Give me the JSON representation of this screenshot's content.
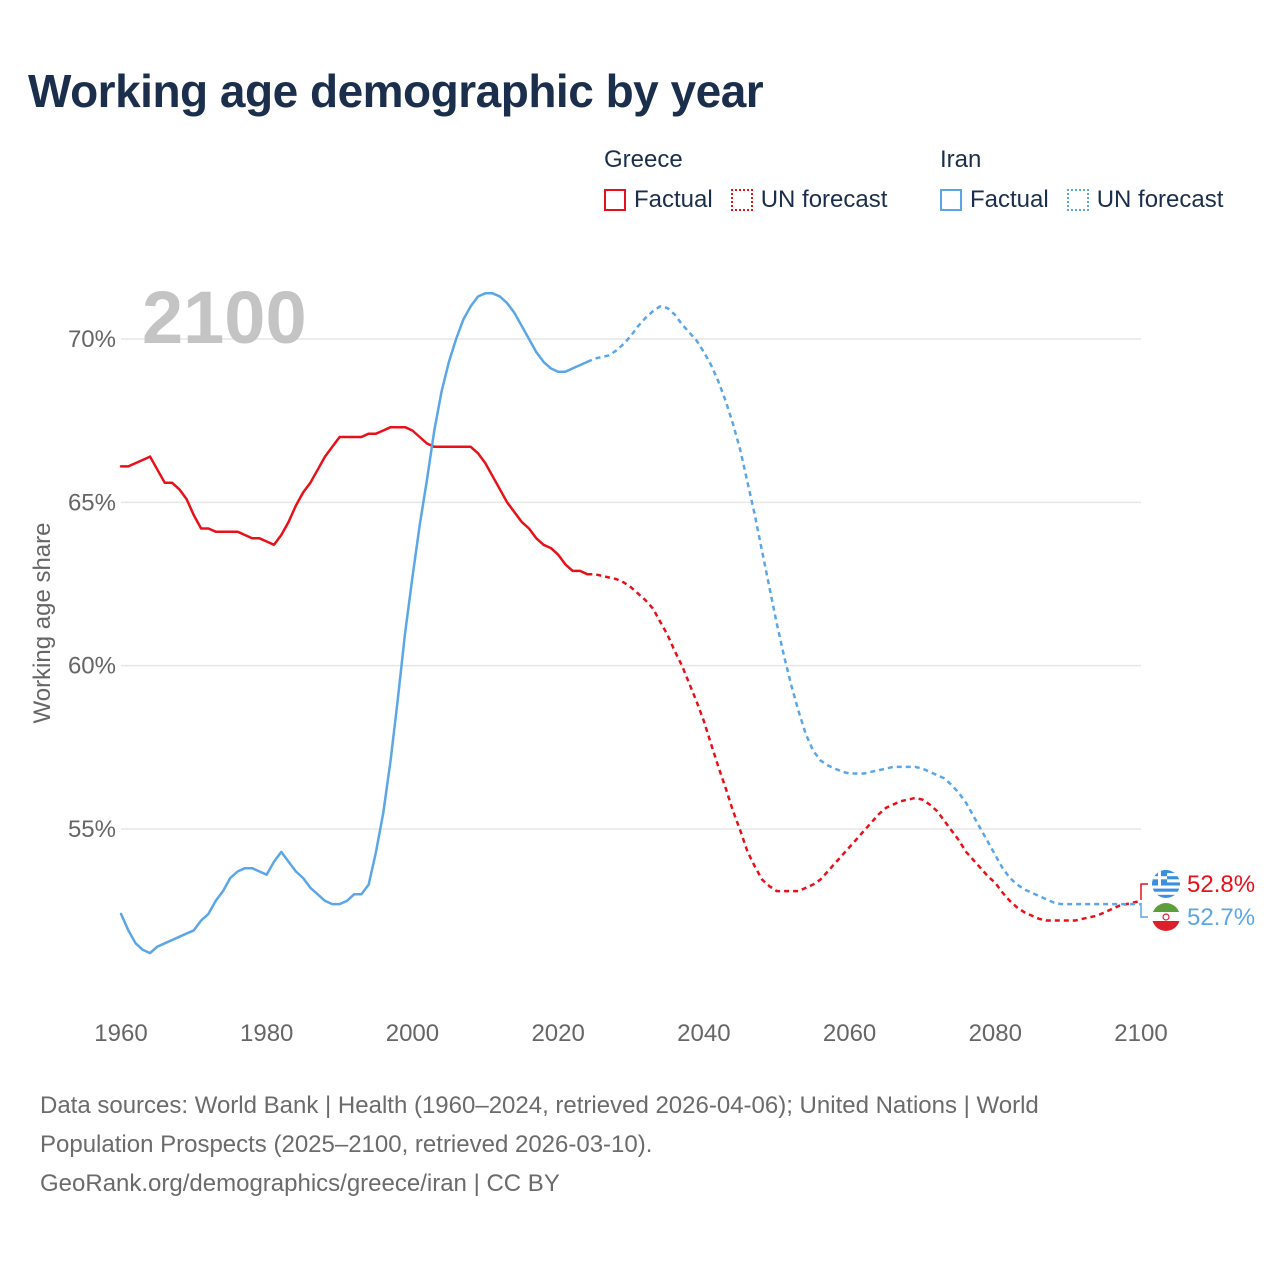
{
  "title": "Working age demographic by year",
  "legend": {
    "groups": [
      {
        "name": "Greece",
        "factual_label": "Factual",
        "forecast_label": "UN forecast",
        "color": "#e8111a"
      },
      {
        "name": "Iran",
        "factual_label": "Factual",
        "forecast_label": "UN forecast",
        "color": "#5ba6e6"
      }
    ]
  },
  "year_watermark": "2100",
  "end_labels": {
    "greece": {
      "value": "52.8%",
      "flag": "greece-flag-icon"
    },
    "iran": {
      "value": "52.7%",
      "flag": "iran-flag-icon"
    }
  },
  "footer": {
    "line1": "Data sources: World Bank | Health (1960–2024, retrieved 2026-04-06); United Nations | World",
    "line2": "Population Prospects (2025–2100, retrieved 2026-03-10).",
    "line3": "GeoRank.org/demographics/greece/iran | CC BY"
  },
  "chart_data": {
    "type": "line",
    "title": "Working age demographic by year",
    "xlabel": "",
    "ylabel": "Working age share",
    "xlim": [
      1960,
      2100
    ],
    "ylim": [
      50,
      72
    ],
    "x_ticks": [
      1960,
      1980,
      2000,
      2020,
      2040,
      2060,
      2080,
      2100
    ],
    "x_tick_labels": [
      "1960",
      "1980",
      "2000",
      "2020",
      "2040",
      "2060",
      "2080",
      "2100"
    ],
    "y_ticks": [
      55,
      60,
      65,
      70
    ],
    "y_tick_labels": [
      "55%",
      "60%",
      "65%",
      "70%"
    ],
    "grid": true,
    "factual_end_year": 2024,
    "series": [
      {
        "name": "Greece",
        "color": "#e8111a",
        "points": [
          [
            1960,
            66.1
          ],
          [
            1961,
            66.1
          ],
          [
            1962,
            66.2
          ],
          [
            1963,
            66.3
          ],
          [
            1964,
            66.4
          ],
          [
            1965,
            66.0
          ],
          [
            1966,
            65.6
          ],
          [
            1967,
            65.6
          ],
          [
            1968,
            65.4
          ],
          [
            1969,
            65.1
          ],
          [
            1970,
            64.6
          ],
          [
            1971,
            64.2
          ],
          [
            1972,
            64.2
          ],
          [
            1973,
            64.1
          ],
          [
            1974,
            64.1
          ],
          [
            1975,
            64.1
          ],
          [
            1976,
            64.1
          ],
          [
            1977,
            64.0
          ],
          [
            1978,
            63.9
          ],
          [
            1979,
            63.9
          ],
          [
            1980,
            63.8
          ],
          [
            1981,
            63.7
          ],
          [
            1982,
            64.0
          ],
          [
            1983,
            64.4
          ],
          [
            1984,
            64.9
          ],
          [
            1985,
            65.3
          ],
          [
            1986,
            65.6
          ],
          [
            1987,
            66.0
          ],
          [
            1988,
            66.4
          ],
          [
            1989,
            66.7
          ],
          [
            1990,
            67.0
          ],
          [
            1991,
            67.0
          ],
          [
            1992,
            67.0
          ],
          [
            1993,
            67.0
          ],
          [
            1994,
            67.1
          ],
          [
            1995,
            67.1
          ],
          [
            1996,
            67.2
          ],
          [
            1997,
            67.3
          ],
          [
            1998,
            67.3
          ],
          [
            1999,
            67.3
          ],
          [
            2000,
            67.2
          ],
          [
            2001,
            67.0
          ],
          [
            2002,
            66.8
          ],
          [
            2003,
            66.7
          ],
          [
            2004,
            66.7
          ],
          [
            2005,
            66.7
          ],
          [
            2006,
            66.7
          ],
          [
            2007,
            66.7
          ],
          [
            2008,
            66.7
          ],
          [
            2009,
            66.5
          ],
          [
            2010,
            66.2
          ],
          [
            2011,
            65.8
          ],
          [
            2012,
            65.4
          ],
          [
            2013,
            65.0
          ],
          [
            2014,
            64.7
          ],
          [
            2015,
            64.4
          ],
          [
            2016,
            64.2
          ],
          [
            2017,
            63.9
          ],
          [
            2018,
            63.7
          ],
          [
            2019,
            63.6
          ],
          [
            2020,
            63.4
          ],
          [
            2021,
            63.1
          ],
          [
            2022,
            62.9
          ],
          [
            2023,
            62.9
          ],
          [
            2024,
            62.8
          ],
          [
            2025,
            62.8
          ],
          [
            2026,
            62.75
          ],
          [
            2027,
            62.7
          ],
          [
            2028,
            62.65
          ],
          [
            2029,
            62.55
          ],
          [
            2030,
            62.4
          ],
          [
            2031,
            62.2
          ],
          [
            2032,
            62.0
          ],
          [
            2033,
            61.75
          ],
          [
            2034,
            61.35
          ],
          [
            2035,
            60.95
          ],
          [
            2036,
            60.45
          ],
          [
            2037,
            60.0
          ],
          [
            2038,
            59.45
          ],
          [
            2039,
            58.9
          ],
          [
            2040,
            58.3
          ],
          [
            2041,
            57.6
          ],
          [
            2042,
            56.9
          ],
          [
            2043,
            56.25
          ],
          [
            2044,
            55.55
          ],
          [
            2045,
            54.95
          ],
          [
            2046,
            54.3
          ],
          [
            2047,
            53.85
          ],
          [
            2048,
            53.45
          ],
          [
            2049,
            53.25
          ],
          [
            2050,
            53.1
          ],
          [
            2051,
            53.1
          ],
          [
            2052,
            53.1
          ],
          [
            2053,
            53.1
          ],
          [
            2054,
            53.2
          ],
          [
            2055,
            53.3
          ],
          [
            2056,
            53.45
          ],
          [
            2057,
            53.7
          ],
          [
            2058,
            53.95
          ],
          [
            2059,
            54.2
          ],
          [
            2060,
            54.45
          ],
          [
            2061,
            54.7
          ],
          [
            2062,
            54.95
          ],
          [
            2063,
            55.2
          ],
          [
            2064,
            55.45
          ],
          [
            2065,
            55.65
          ],
          [
            2066,
            55.75
          ],
          [
            2067,
            55.85
          ],
          [
            2068,
            55.9
          ],
          [
            2069,
            55.95
          ],
          [
            2070,
            55.9
          ],
          [
            2071,
            55.75
          ],
          [
            2072,
            55.55
          ],
          [
            2073,
            55.25
          ],
          [
            2074,
            54.95
          ],
          [
            2075,
            54.65
          ],
          [
            2076,
            54.3
          ],
          [
            2077,
            54.05
          ],
          [
            2078,
            53.8
          ],
          [
            2079,
            53.55
          ],
          [
            2080,
            53.35
          ],
          [
            2081,
            53.05
          ],
          [
            2082,
            52.8
          ],
          [
            2083,
            52.6
          ],
          [
            2084,
            52.45
          ],
          [
            2085,
            52.35
          ],
          [
            2086,
            52.25
          ],
          [
            2087,
            52.2
          ],
          [
            2088,
            52.2
          ],
          [
            2089,
            52.2
          ],
          [
            2090,
            52.2
          ],
          [
            2091,
            52.2
          ],
          [
            2092,
            52.25
          ],
          [
            2093,
            52.3
          ],
          [
            2094,
            52.35
          ],
          [
            2095,
            52.45
          ],
          [
            2096,
            52.55
          ],
          [
            2097,
            52.65
          ],
          [
            2098,
            52.7
          ],
          [
            2099,
            52.75
          ],
          [
            2100,
            52.8
          ]
        ]
      },
      {
        "name": "Iran",
        "color": "#5ba6e6",
        "points": [
          [
            1960,
            52.4
          ],
          [
            1961,
            51.9
          ],
          [
            1962,
            51.5
          ],
          [
            1963,
            51.3
          ],
          [
            1964,
            51.2
          ],
          [
            1965,
            51.4
          ],
          [
            1966,
            51.5
          ],
          [
            1967,
            51.6
          ],
          [
            1968,
            51.7
          ],
          [
            1969,
            51.8
          ],
          [
            1970,
            51.9
          ],
          [
            1971,
            52.2
          ],
          [
            1972,
            52.4
          ],
          [
            1973,
            52.8
          ],
          [
            1974,
            53.1
          ],
          [
            1975,
            53.5
          ],
          [
            1976,
            53.7
          ],
          [
            1977,
            53.8
          ],
          [
            1978,
            53.8
          ],
          [
            1979,
            53.7
          ],
          [
            1980,
            53.6
          ],
          [
            1981,
            54.0
          ],
          [
            1982,
            54.3
          ],
          [
            1983,
            54.0
          ],
          [
            1984,
            53.7
          ],
          [
            1985,
            53.5
          ],
          [
            1986,
            53.2
          ],
          [
            1987,
            53.0
          ],
          [
            1988,
            52.8
          ],
          [
            1989,
            52.7
          ],
          [
            1990,
            52.7
          ],
          [
            1991,
            52.8
          ],
          [
            1992,
            53.0
          ],
          [
            1993,
            53.0
          ],
          [
            1994,
            53.3
          ],
          [
            1995,
            54.3
          ],
          [
            1996,
            55.5
          ],
          [
            1997,
            57.1
          ],
          [
            1998,
            59.0
          ],
          [
            1999,
            61.0
          ],
          [
            2000,
            62.7
          ],
          [
            2001,
            64.3
          ],
          [
            2002,
            65.7
          ],
          [
            2003,
            67.2
          ],
          [
            2004,
            68.4
          ],
          [
            2005,
            69.3
          ],
          [
            2006,
            70.0
          ],
          [
            2007,
            70.6
          ],
          [
            2008,
            71.0
          ],
          [
            2009,
            71.3
          ],
          [
            2010,
            71.4
          ],
          [
            2011,
            71.4
          ],
          [
            2012,
            71.3
          ],
          [
            2013,
            71.1
          ],
          [
            2014,
            70.8
          ],
          [
            2015,
            70.4
          ],
          [
            2016,
            70.0
          ],
          [
            2017,
            69.6
          ],
          [
            2018,
            69.3
          ],
          [
            2019,
            69.1
          ],
          [
            2020,
            69.0
          ],
          [
            2021,
            69.0
          ],
          [
            2022,
            69.1
          ],
          [
            2023,
            69.2
          ],
          [
            2024,
            69.3
          ],
          [
            2025,
            69.4
          ],
          [
            2026,
            69.45
          ],
          [
            2027,
            69.5
          ],
          [
            2028,
            69.65
          ],
          [
            2029,
            69.85
          ],
          [
            2030,
            70.1
          ],
          [
            2031,
            70.4
          ],
          [
            2032,
            70.65
          ],
          [
            2033,
            70.85
          ],
          [
            2034,
            71.0
          ],
          [
            2035,
            70.95
          ],
          [
            2036,
            70.75
          ],
          [
            2037,
            70.45
          ],
          [
            2038,
            70.2
          ],
          [
            2039,
            69.95
          ],
          [
            2040,
            69.6
          ],
          [
            2041,
            69.2
          ],
          [
            2042,
            68.7
          ],
          [
            2043,
            68.1
          ],
          [
            2044,
            67.4
          ],
          [
            2045,
            66.6
          ],
          [
            2046,
            65.6
          ],
          [
            2047,
            64.6
          ],
          [
            2048,
            63.5
          ],
          [
            2049,
            62.4
          ],
          [
            2050,
            61.3
          ],
          [
            2051,
            60.3
          ],
          [
            2052,
            59.4
          ],
          [
            2053,
            58.6
          ],
          [
            2054,
            57.9
          ],
          [
            2055,
            57.4
          ],
          [
            2056,
            57.1
          ],
          [
            2057,
            56.95
          ],
          [
            2058,
            56.85
          ],
          [
            2059,
            56.75
          ],
          [
            2060,
            56.7
          ],
          [
            2061,
            56.7
          ],
          [
            2062,
            56.7
          ],
          [
            2063,
            56.75
          ],
          [
            2064,
            56.8
          ],
          [
            2065,
            56.85
          ],
          [
            2066,
            56.9
          ],
          [
            2067,
            56.9
          ],
          [
            2068,
            56.9
          ],
          [
            2069,
            56.9
          ],
          [
            2070,
            56.85
          ],
          [
            2071,
            56.75
          ],
          [
            2072,
            56.65
          ],
          [
            2073,
            56.55
          ],
          [
            2074,
            56.35
          ],
          [
            2075,
            56.1
          ],
          [
            2076,
            55.8
          ],
          [
            2077,
            55.4
          ],
          [
            2078,
            55.0
          ],
          [
            2079,
            54.6
          ],
          [
            2080,
            54.2
          ],
          [
            2081,
            53.8
          ],
          [
            2082,
            53.5
          ],
          [
            2083,
            53.3
          ],
          [
            2084,
            53.15
          ],
          [
            2085,
            53.05
          ],
          [
            2086,
            52.95
          ],
          [
            2087,
            52.85
          ],
          [
            2088,
            52.75
          ],
          [
            2089,
            52.7
          ],
          [
            2090,
            52.7
          ],
          [
            2091,
            52.7
          ],
          [
            2092,
            52.7
          ],
          [
            2093,
            52.7
          ],
          [
            2094,
            52.7
          ],
          [
            2095,
            52.7
          ],
          [
            2096,
            52.7
          ],
          [
            2097,
            52.7
          ],
          [
            2098,
            52.7
          ],
          [
            2099,
            52.7
          ],
          [
            2100,
            52.7
          ]
        ]
      }
    ]
  }
}
